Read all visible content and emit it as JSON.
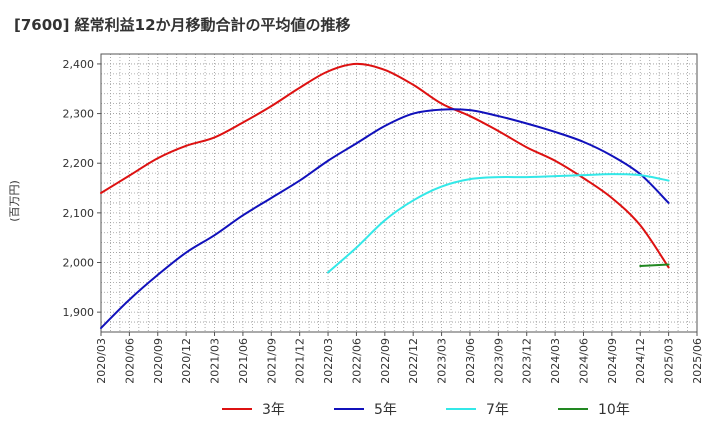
{
  "chart_data": {
    "type": "line",
    "title": "[7600]  経常利益12か月移動合計の平均値の推移",
    "ylabel": "(百万円)",
    "xlabel": "",
    "ylim": [
      1860,
      2420
    ],
    "yticks": [
      1900,
      2000,
      2100,
      2200,
      2300,
      2400
    ],
    "ytick_labels": [
      "1,900",
      "2,000",
      "2,100",
      "2,200",
      "2,300",
      "2,400"
    ],
    "x_tick_labels": [
      "2020/03",
      "2020/06",
      "2020/09",
      "2020/12",
      "2021/03",
      "2021/06",
      "2021/09",
      "2021/12",
      "2022/03",
      "2022/06",
      "2022/09",
      "2022/12",
      "2023/03",
      "2023/06",
      "2023/09",
      "2023/12",
      "2024/03",
      "2024/06",
      "2024/09",
      "2024/12",
      "2025/03",
      "2025/06"
    ],
    "grid": true,
    "legend_position": "bottom",
    "series": [
      {
        "name": "3年",
        "color": "#dd1111",
        "start_index": 0,
        "values": [
          2140,
          2175,
          2210,
          2235,
          2252,
          2282,
          2315,
          2352,
          2385,
          2400,
          2388,
          2358,
          2320,
          2295,
          2265,
          2232,
          2205,
          2170,
          2130,
          2075,
          1990
        ]
      },
      {
        "name": "5年",
        "color": "#1111bb",
        "start_index": 0,
        "values": [
          1868,
          1925,
          1975,
          2020,
          2055,
          2095,
          2130,
          2165,
          2205,
          2240,
          2275,
          2300,
          2308,
          2307,
          2295,
          2280,
          2263,
          2243,
          2215,
          2178,
          2120
        ]
      },
      {
        "name": "7年",
        "color": "#33e8e8",
        "start_index": 8,
        "values": [
          1980,
          2030,
          2085,
          2125,
          2153,
          2168,
          2172,
          2172,
          2174,
          2176,
          2178,
          2176,
          2165
        ]
      },
      {
        "name": "10年",
        "color": "#228822",
        "start_index": 19,
        "values": [
          1993,
          1996
        ]
      }
    ]
  }
}
